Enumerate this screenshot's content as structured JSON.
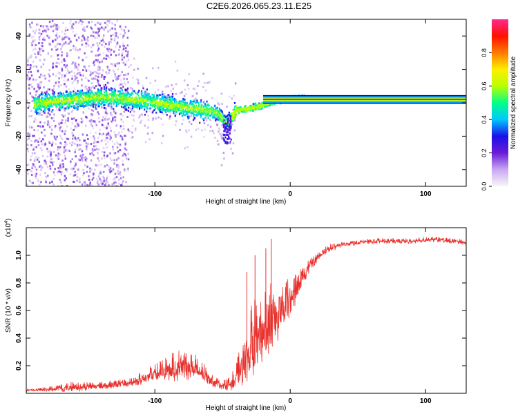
{
  "title": "C2E6.2026.065.23.11.E25",
  "colors": {
    "trace": "#e8302c",
    "tone": "#ff2a10",
    "axis": "#000000",
    "background": "#ffffff",
    "colorbar": [
      "#f7f7f7",
      "#c9a8f2",
      "#6a1cd8",
      "#1a10e8",
      "#00c8ff",
      "#00ff88",
      "#b8ff00",
      "#ffee00",
      "#ff7a00",
      "#ff1000",
      "#ff2a90"
    ]
  },
  "chart_data": [
    {
      "type": "heatmap",
      "title": "C2E6.2026.065.23.11.E25",
      "xlabel": "Height of straight line (km)",
      "ylabel": "Frequency (Hz)",
      "xlim": [
        -195,
        130
      ],
      "ylim": [
        -50,
        50
      ],
      "x_ticks": [
        -100,
        0,
        100
      ],
      "x_tick_labels": [
        "-100",
        "0",
        "100"
      ],
      "y_ticks": [
        -40,
        -20,
        0,
        20,
        40
      ],
      "y_tick_labels": [
        "-40",
        "-20",
        "0",
        "20",
        "40"
      ],
      "colorbar": {
        "label": "Normalized spectral amplitude",
        "range": [
          0,
          1
        ],
        "ticks": [
          0.0,
          0.2,
          0.4,
          0.6,
          0.8
        ],
        "tick_labels": [
          "0.0",
          "0.2",
          "0.4",
          "0.6",
          "0.8"
        ]
      },
      "tone": {
        "x_start": -20,
        "x_end": 130,
        "frequency_hz": 2,
        "amplitude": 1.0
      },
      "ridge": [
        {
          "x": -190,
          "freq": 0
        },
        {
          "x": -165,
          "freq": 2
        },
        {
          "x": -140,
          "freq": 4
        },
        {
          "x": -110,
          "freq": 2
        },
        {
          "x": -80,
          "freq": -2
        },
        {
          "x": -55,
          "freq": -5
        },
        {
          "x": -47,
          "freq": -12
        },
        {
          "x": -40,
          "freq": -4
        },
        {
          "x": -25,
          "freq": -2
        },
        {
          "x": -10,
          "freq": 2
        },
        {
          "x": 5,
          "freq": 3
        }
      ]
    },
    {
      "type": "line",
      "xlabel": "Height of straight line (km)",
      "ylabel": "SNR (10 * v/v)",
      "multiplier": "(x10",
      "multiplier_exp": "4",
      "multiplier_close": ")",
      "xlim": [
        -195,
        130
      ],
      "ylim": [
        0.0,
        1.2
      ],
      "x_ticks": [
        -100,
        0,
        100
      ],
      "x_tick_labels": [
        "-100",
        "0",
        "100"
      ],
      "y_ticks": [
        0.2,
        0.4,
        0.6,
        0.8,
        1.0
      ],
      "y_tick_labels": [
        "0.2",
        "0.4",
        "0.6",
        "0.8",
        "1.0"
      ],
      "series": [
        {
          "name": "SNR",
          "x": [
            -195,
            -175,
            -160,
            -140,
            -120,
            -110,
            -100,
            -90,
            -80,
            -70,
            -60,
            -50,
            -45,
            -40,
            -35,
            -30,
            -25,
            -20,
            -15,
            -10,
            -5,
            0,
            5,
            10,
            15,
            20,
            25,
            30,
            40,
            50,
            60,
            70,
            80,
            90,
            100,
            110,
            120,
            130
          ],
          "base": [
            0.02,
            0.03,
            0.04,
            0.05,
            0.07,
            0.1,
            0.13,
            0.16,
            0.19,
            0.17,
            0.1,
            0.05,
            0.06,
            0.1,
            0.2,
            0.3,
            0.38,
            0.44,
            0.5,
            0.55,
            0.6,
            0.66,
            0.75,
            0.85,
            0.93,
            0.98,
            1.02,
            1.05,
            1.08,
            1.09,
            1.1,
            1.1,
            1.1,
            1.1,
            1.11,
            1.11,
            1.1,
            1.09
          ],
          "spread": [
            0.01,
            0.02,
            0.04,
            0.03,
            0.03,
            0.05,
            0.07,
            0.1,
            0.12,
            0.1,
            0.06,
            0.03,
            0.05,
            0.1,
            0.18,
            0.25,
            0.3,
            0.35,
            0.3,
            0.25,
            0.2,
            0.15,
            0.1,
            0.07,
            0.05,
            0.04,
            0.03,
            0.03,
            0.02,
            0.02,
            0.02,
            0.02,
            0.02,
            0.02,
            0.02,
            0.02,
            0.02,
            0.02
          ]
        }
      ],
      "spikes": [
        {
          "x": -32,
          "value": 0.88
        },
        {
          "x": -26,
          "value": 1.0
        },
        {
          "x": -18,
          "value": 1.05
        },
        {
          "x": -14,
          "value": 1.12
        }
      ]
    }
  ]
}
